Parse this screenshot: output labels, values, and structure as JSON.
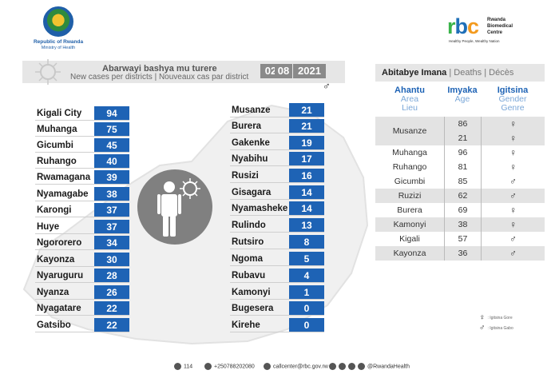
{
  "header": {
    "gov_line1": "Republic of Rwanda",
    "gov_line2": "Ministry of Health",
    "rbc_mark": "rbc",
    "rbc_name_1": "Rwanda",
    "rbc_name_2": "Biomedical",
    "rbc_name_3": "Centre",
    "rbc_tagline": "Healthy People, Wealthy Nation"
  },
  "title": {
    "kinyarwanda": "Abarwayi bashya mu turere",
    "en_fr": "New cases per districts  |  Nouveaux cas par district",
    "day": "02",
    "month": "08",
    "year": "2021"
  },
  "left_districts": [
    {
      "name": "Kigali City",
      "value": "94"
    },
    {
      "name": "Muhanga",
      "value": "75"
    },
    {
      "name": "Gicumbi",
      "value": "45"
    },
    {
      "name": "Ruhango",
      "value": "40"
    },
    {
      "name": "Rwamagana",
      "value": "39"
    },
    {
      "name": "Nyamagabe",
      "value": "38"
    },
    {
      "name": "Karongi",
      "value": "37"
    },
    {
      "name": "Huye",
      "value": "37"
    },
    {
      "name": "Ngororero",
      "value": "34"
    },
    {
      "name": "Kayonza",
      "value": "30"
    },
    {
      "name": "Nyaruguru",
      "value": "28"
    },
    {
      "name": "Nyanza",
      "value": "26"
    },
    {
      "name": "Nyagatare",
      "value": "22"
    },
    {
      "name": "Gatsibo",
      "value": "22"
    }
  ],
  "right_districts": [
    {
      "name": "Musanze",
      "value": "21"
    },
    {
      "name": "Burera",
      "value": "21"
    },
    {
      "name": "Gakenke",
      "value": "19"
    },
    {
      "name": "Nyabihu",
      "value": "17"
    },
    {
      "name": "Rusizi",
      "value": "16"
    },
    {
      "name": "Gisagara",
      "value": "14"
    },
    {
      "name": "Nyamasheke",
      "value": "14"
    },
    {
      "name": "Rulindo",
      "value": "13"
    },
    {
      "name": "Rutsiro",
      "value": "8"
    },
    {
      "name": "Ngoma",
      "value": "5"
    },
    {
      "name": "Rubavu",
      "value": "4"
    },
    {
      "name": "Kamonyi",
      "value": "1"
    },
    {
      "name": "Bugesera",
      "value": "0"
    },
    {
      "name": "Kirehe",
      "value": "0"
    }
  ],
  "deaths": {
    "head_rw": "Abitabye Imana",
    "head_sep1": " | ",
    "head_en": "Deaths",
    "head_sep2": " | ",
    "head_fr": "Décès",
    "col_place": {
      "rw": "Ahantu",
      "en": "Area",
      "fr": "Lieu"
    },
    "col_age": {
      "rw": "Imyaka",
      "en": "Age"
    },
    "col_sex": {
      "rw": "Igitsina",
      "en": "Gender",
      "fr": "Genre"
    },
    "rows": [
      {
        "place": "Musanze",
        "age": "86",
        "sex": "♀"
      },
      {
        "place": "",
        "age": "21",
        "sex": "♀"
      },
      {
        "place": "Muhanga",
        "age": "96",
        "sex": "♀"
      },
      {
        "place": "Ruhango",
        "age": "81",
        "sex": "♀"
      },
      {
        "place": "Gicumbi",
        "age": "85",
        "sex": "♂"
      },
      {
        "place": "Ruzizi",
        "age": "62",
        "sex": "♂"
      },
      {
        "place": "Burera",
        "age": "69",
        "sex": "♀"
      },
      {
        "place": "Kamonyi",
        "age": "38",
        "sex": "♀"
      },
      {
        "place": "Kigali",
        "age": "57",
        "sex": "♂"
      },
      {
        "place": "Kayonza",
        "age": "36",
        "sex": "♂"
      }
    ],
    "legend_female_symbol": "♀",
    "legend_female": ": Igitsina Gore",
    "legend_male_symbol": "♂",
    "legend_male": ": Igitsina Gabo",
    "male_symbol_top": "♂"
  },
  "footer": {
    "hotline": "114",
    "phone": "+250788202080",
    "email": "callcenter@rbc.gov.rw",
    "social": "@RwandaHealth"
  },
  "colors": {
    "bar": "#1e63b5",
    "band": "#e6e6e6",
    "accent_green": "#3ab34a",
    "accent_orange": "#f39a1e"
  }
}
